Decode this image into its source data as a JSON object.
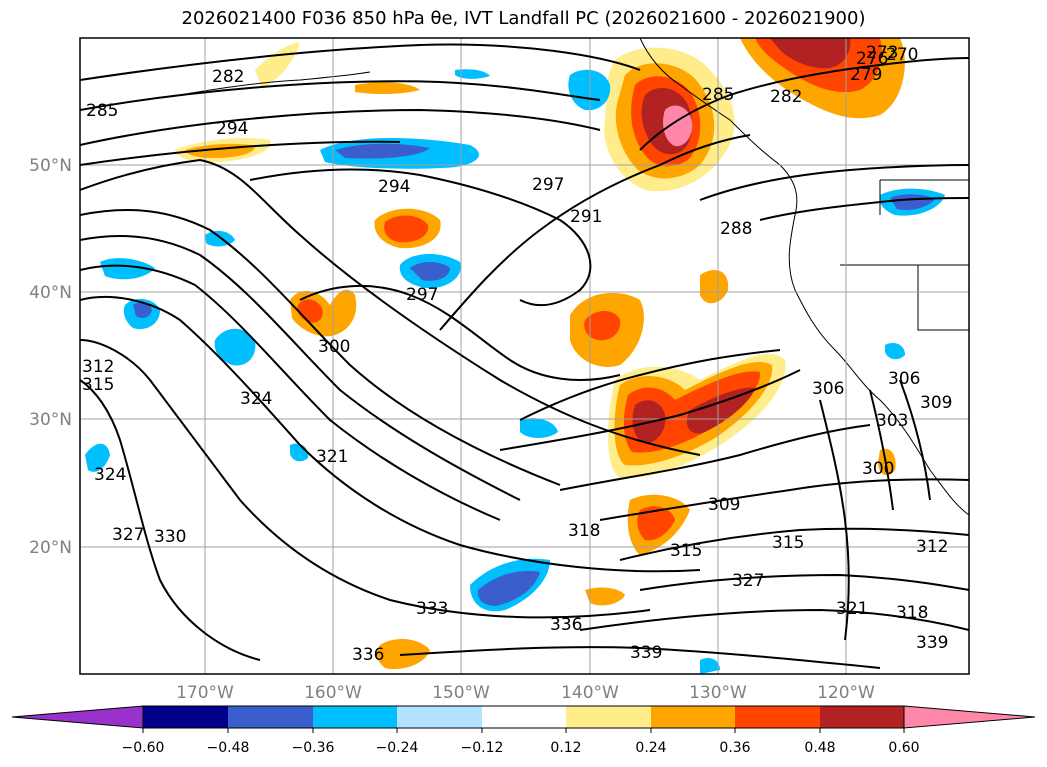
{
  "title": "2026021400 F036 850 hPa θe, IVT Landfall PC (2026021600 - 2026021900)",
  "map": {
    "lon_labels": [
      "170°W",
      "160°W",
      "150°W",
      "140°W",
      "130°W",
      "120°W"
    ],
    "lat_labels": [
      "50°N",
      "40°N",
      "30°N",
      "20°N"
    ],
    "contour_labels": [
      "282",
      "285",
      "294",
      "294",
      "297",
      "291",
      "288",
      "297",
      "300",
      "324",
      "321",
      "312",
      "315",
      "324",
      "327",
      "330",
      "333",
      "336",
      "336",
      "339",
      "327",
      "321",
      "318",
      "339",
      "315",
      "312",
      "318",
      "315",
      "309",
      "306",
      "306",
      "303",
      "309",
      "300",
      "285",
      "282",
      "276",
      "273",
      "270",
      "279"
    ]
  },
  "colorbar": {
    "tick_labels": [
      "−0.60",
      "−0.48",
      "−0.36",
      "−0.24",
      "−0.12",
      "0.12",
      "0.24",
      "0.36",
      "0.48",
      "0.60"
    ],
    "colors": [
      "#9932cc",
      "#00008b",
      "#3a5fcd",
      "#00bfff",
      "#b2e2ff",
      "#ffffff",
      "#ffec8b",
      "#ffa500",
      "#ff4500",
      "#b22222",
      "#ff88aa"
    ]
  }
}
